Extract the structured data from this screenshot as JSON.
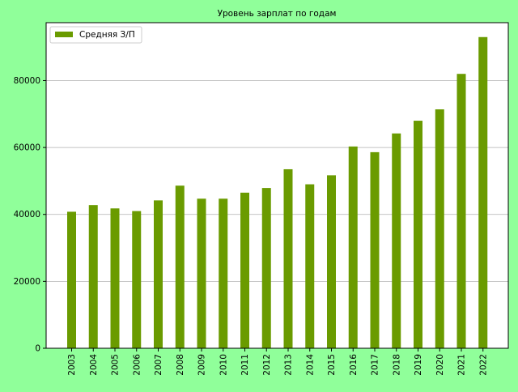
{
  "colors": {
    "figure_background": "#90ff9a",
    "plot_background": "#ffffff",
    "bar_color": "#6a9b00",
    "grid_color": "#b0b0b0"
  },
  "chart_data": {
    "type": "bar",
    "title": "Уровень зарплат по годам",
    "xlabel": "",
    "ylabel": "",
    "categories": [
      "2003",
      "2004",
      "2005",
      "2006",
      "2007",
      "2008",
      "2009",
      "2010",
      "2011",
      "2012",
      "2013",
      "2014",
      "2015",
      "2016",
      "2017",
      "2018",
      "2019",
      "2020",
      "2021",
      "2022"
    ],
    "series": [
      {
        "name": "Средняя З/П",
        "values": [
          40800,
          42800,
          41800,
          41000,
          44200,
          48600,
          44700,
          44700,
          46500,
          47900,
          53500,
          49000,
          51700,
          60300,
          58600,
          64200,
          68000,
          71400,
          82000,
          93000
        ]
      }
    ],
    "ylim": [
      0,
      97300
    ],
    "yticks": [
      0,
      20000,
      40000,
      60000,
      80000
    ],
    "grid": "horizontal",
    "legend_position": "top-left"
  }
}
